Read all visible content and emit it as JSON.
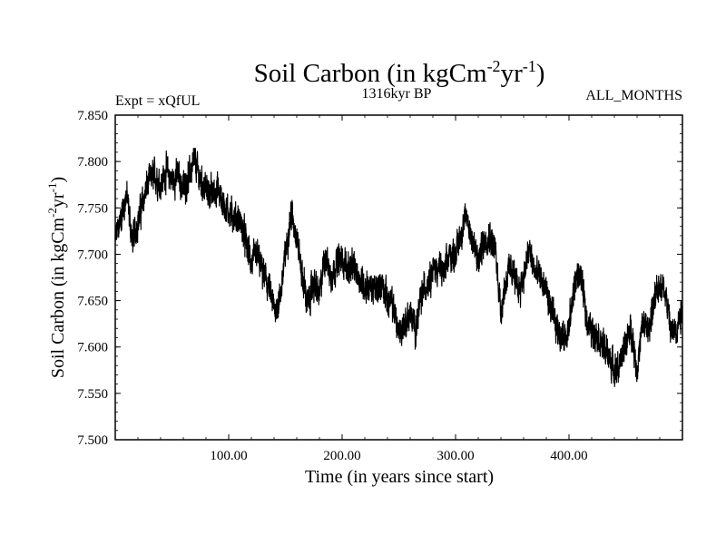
{
  "header": {
    "title_main": "Soil Carbon (in kgCm",
    "title_sup1": "-2",
    "title_mid": "yr",
    "title_sup2": "-1",
    "title_end": ")",
    "expt": "Expt = xQfUL",
    "period": "1316kyr BP",
    "months": "ALL_MONTHS"
  },
  "axes": {
    "xlabel": "Time (in years since start)",
    "ylabel_main": "Soil Carbon (in kgCm",
    "ylabel_sup1": "-2",
    "ylabel_mid": "yr",
    "ylabel_sup2": "-1",
    "ylabel_end": ")"
  },
  "chart_data": {
    "type": "line",
    "title": "Soil Carbon (in kgCm-2yr-1)",
    "xlabel": "Time (in years since start)",
    "ylabel": "Soil Carbon (in kgCm-2yr-1)",
    "xlim": [
      0,
      500
    ],
    "ylim": [
      7.5,
      7.85
    ],
    "x_ticks": [
      100,
      200,
      300,
      400
    ],
    "x_tick_labels": [
      "100.00",
      "200.00",
      "300.00",
      "400.00"
    ],
    "y_ticks": [
      7.5,
      7.55,
      7.6,
      7.65,
      7.7,
      7.75,
      7.8,
      7.85
    ],
    "y_tick_labels": [
      "7.500",
      "7.550",
      "7.600",
      "7.650",
      "7.700",
      "7.750",
      "7.800",
      "7.850"
    ],
    "series": [
      {
        "name": "Soil Carbon",
        "color": "#000000",
        "noise_amplitude": 0.012,
        "x": [
          0,
          5,
          10,
          15,
          20,
          25,
          30,
          35,
          40,
          45,
          50,
          55,
          60,
          65,
          70,
          75,
          80,
          85,
          90,
          95,
          100,
          105,
          110,
          115,
          120,
          125,
          130,
          135,
          140,
          145,
          150,
          155,
          160,
          165,
          170,
          175,
          180,
          185,
          190,
          195,
          200,
          205,
          210,
          215,
          220,
          225,
          230,
          235,
          240,
          245,
          250,
          255,
          260,
          265,
          270,
          275,
          280,
          285,
          290,
          295,
          300,
          305,
          310,
          315,
          320,
          325,
          330,
          335,
          340,
          345,
          350,
          355,
          360,
          365,
          370,
          375,
          380,
          385,
          390,
          395,
          400,
          405,
          410,
          415,
          420,
          425,
          430,
          435,
          440,
          445,
          450,
          455,
          460,
          465,
          470,
          475,
          480,
          485,
          490,
          495,
          500
        ],
        "values": [
          7.715,
          7.74,
          7.765,
          7.715,
          7.735,
          7.76,
          7.78,
          7.785,
          7.775,
          7.79,
          7.78,
          7.785,
          7.77,
          7.785,
          7.8,
          7.78,
          7.77,
          7.765,
          7.77,
          7.755,
          7.745,
          7.74,
          7.735,
          7.715,
          7.69,
          7.7,
          7.68,
          7.665,
          7.64,
          7.65,
          7.7,
          7.745,
          7.72,
          7.675,
          7.645,
          7.67,
          7.655,
          7.7,
          7.675,
          7.69,
          7.695,
          7.685,
          7.685,
          7.675,
          7.665,
          7.665,
          7.66,
          7.67,
          7.65,
          7.645,
          7.615,
          7.625,
          7.635,
          7.62,
          7.655,
          7.67,
          7.685,
          7.685,
          7.68,
          7.7,
          7.7,
          7.725,
          7.74,
          7.715,
          7.69,
          7.715,
          7.72,
          7.705,
          7.64,
          7.675,
          7.685,
          7.66,
          7.675,
          7.705,
          7.68,
          7.675,
          7.66,
          7.635,
          7.62,
          7.61,
          7.62,
          7.67,
          7.68,
          7.635,
          7.615,
          7.615,
          7.6,
          7.59,
          7.575,
          7.58,
          7.605,
          7.62,
          7.575,
          7.625,
          7.62,
          7.645,
          7.67,
          7.66,
          7.615,
          7.62,
          7.645
        ]
      }
    ]
  }
}
